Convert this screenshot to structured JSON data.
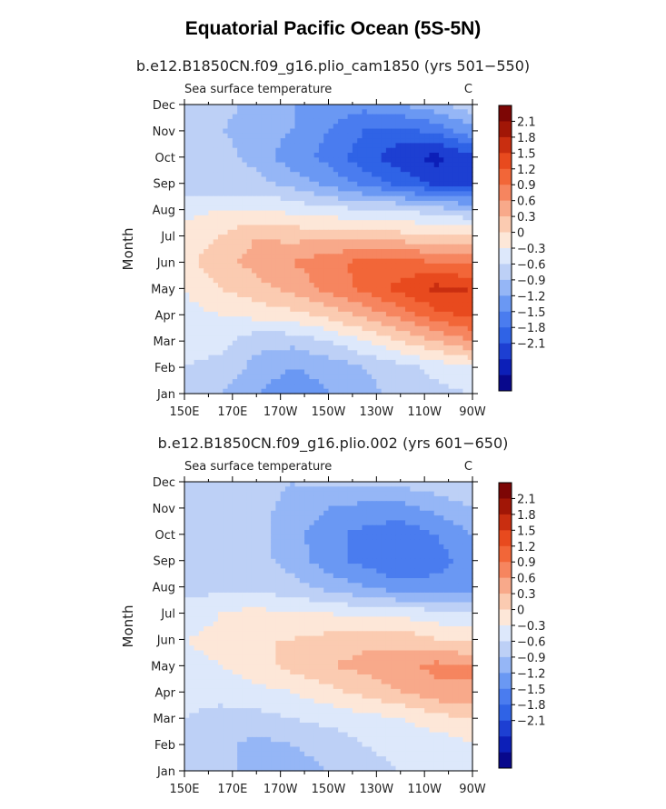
{
  "figure_title": "Equatorial Pacific Ocean (5S-5N)",
  "colors": {
    "scale": [
      "#08088c",
      "#0c1fb8",
      "#1d3fd2",
      "#2f63e6",
      "#4a7cef",
      "#6a98f3",
      "#95b6f6",
      "#bdd0f6",
      "#dde8fb",
      "#fde7d8",
      "#fbcbb1",
      "#f8a98a",
      "#f6855f",
      "#f26638",
      "#e84a1e",
      "#c92e10",
      "#a11606",
      "#7d0605"
    ]
  },
  "chart_data": [
    {
      "type": "heatmap",
      "subtitle": "b.e12.B1850CN.f09_g16.plio_cam1850 (yrs 501−550)",
      "left_label": "Sea surface temperature",
      "units": "C",
      "xlabel": "",
      "ylabel": "Month",
      "x_ticks": [
        "150E",
        "170E",
        "170W",
        "150W",
        "130W",
        "110W",
        "90W"
      ],
      "y_ticks": [
        "Jan",
        "Feb",
        "Mar",
        "Apr",
        "May",
        "Jun",
        "Jul",
        "Aug",
        "Sep",
        "Oct",
        "Nov",
        "Dec"
      ],
      "x_range_lon": [
        150,
        270
      ],
      "colorbar_levels": [
        "2.1",
        "1.8",
        "1.5",
        "1.2",
        "0.9",
        "0.6",
        "0.3",
        "0",
        "−0.3",
        "−0.6",
        "−0.9",
        "−1.2",
        "−1.5",
        "−1.8",
        "−2.1"
      ],
      "grid_lon": [
        150,
        165,
        180,
        195,
        210,
        225,
        240,
        255,
        270
      ],
      "values": [
        [
          -0.1,
          -0.3,
          -0.6,
          -0.8,
          -0.6,
          -0.4,
          -0.2,
          -0.1,
          0.0
        ],
        [
          0.0,
          -0.1,
          -0.4,
          -0.6,
          -0.5,
          -0.3,
          -0.1,
          0.1,
          0.3
        ],
        [
          0.1,
          0.1,
          -0.2,
          -0.2,
          0.0,
          0.3,
          0.6,
          0.9,
          1.2
        ],
        [
          0.2,
          0.3,
          0.4,
          0.5,
          0.7,
          1.0,
          1.3,
          1.7,
          1.9
        ],
        [
          0.3,
          0.6,
          0.8,
          1.0,
          1.3,
          1.6,
          1.9,
          2.2,
          2.1
        ],
        [
          0.5,
          0.8,
          1.0,
          1.2,
          1.4,
          1.6,
          1.6,
          1.5,
          1.4
        ],
        [
          0.4,
          0.6,
          0.9,
          0.8,
          0.8,
          0.8,
          0.7,
          0.7,
          0.6
        ],
        [
          0.2,
          0.3,
          0.3,
          0.2,
          0.1,
          0.0,
          0.0,
          -0.2,
          -0.3
        ],
        [
          -0.2,
          -0.2,
          -0.2,
          -0.4,
          -0.7,
          -1.0,
          -1.3,
          -1.6,
          -1.7
        ],
        [
          -0.3,
          -0.2,
          -0.4,
          -0.8,
          -1.0,
          -1.4,
          -1.7,
          -1.9,
          -1.6
        ],
        [
          -0.2,
          -0.3,
          -0.4,
          -0.6,
          -0.9,
          -1.2,
          -1.3,
          -1.1,
          -0.7
        ],
        [
          -0.1,
          -0.2,
          -0.4,
          -0.6,
          -0.7,
          -0.8,
          -0.6,
          -0.4,
          -0.1
        ]
      ]
    },
    {
      "type": "heatmap",
      "subtitle": "b.e12.B1850CN.f09_g16.plio.002 (yrs 601−650)",
      "left_label": "Sea surface temperature",
      "units": "C",
      "xlabel": "",
      "ylabel": "Month",
      "x_ticks": [
        "150E",
        "170E",
        "170W",
        "150W",
        "130W",
        "110W",
        "90W"
      ],
      "y_ticks": [
        "Jan",
        "Feb",
        "Mar",
        "Apr",
        "May",
        "Jun",
        "Jul",
        "Aug",
        "Sep",
        "Oct",
        "Nov",
        "Dec"
      ],
      "x_range_lon": [
        150,
        270
      ],
      "colorbar_levels": [
        "2.1",
        "1.8",
        "1.5",
        "1.2",
        "0.9",
        "0.6",
        "0.3",
        "0",
        "−0.3",
        "−0.6",
        "−0.9",
        "−1.2",
        "−1.5",
        "−1.8",
        "−2.1"
      ],
      "grid_lon": [
        150,
        165,
        180,
        195,
        210,
        225,
        240,
        255,
        270
      ],
      "values": [
        [
          -0.1,
          -0.2,
          -0.4,
          -0.4,
          -0.3,
          -0.1,
          0.0,
          0.0,
          0.1
        ],
        [
          0.0,
          -0.2,
          -0.4,
          -0.3,
          -0.2,
          0.0,
          0.1,
          0.1,
          0.3
        ],
        [
          0.0,
          -0.1,
          -0.1,
          0.0,
          0.1,
          0.2,
          0.3,
          0.5,
          0.6
        ],
        [
          0.1,
          0.1,
          0.2,
          0.3,
          0.5,
          0.7,
          0.9,
          1.1,
          1.2
        ],
        [
          0.2,
          0.3,
          0.5,
          0.7,
          0.9,
          1.0,
          1.1,
          1.3,
          1.2
        ],
        [
          0.3,
          0.4,
          0.6,
          0.6,
          0.7,
          0.8,
          0.8,
          0.6,
          0.5
        ],
        [
          0.1,
          0.3,
          0.4,
          0.3,
          0.3,
          0.2,
          0.2,
          0.1,
          0.0
        ],
        [
          -0.1,
          -0.1,
          -0.1,
          -0.2,
          -0.4,
          -0.6,
          -0.8,
          -0.8,
          -0.7
        ],
        [
          -0.1,
          -0.1,
          -0.2,
          -0.4,
          -0.8,
          -1.0,
          -1.2,
          -1.0,
          -0.8
        ],
        [
          -0.1,
          -0.1,
          -0.2,
          -0.5,
          -0.8,
          -1.0,
          -1.1,
          -0.9,
          -0.6
        ],
        [
          -0.1,
          -0.1,
          -0.2,
          -0.4,
          -0.6,
          -0.7,
          -0.7,
          -0.5,
          -0.3
        ],
        [
          0.0,
          -0.1,
          -0.2,
          -0.3,
          -0.2,
          -0.2,
          -0.2,
          -0.1,
          0.0
        ]
      ]
    }
  ]
}
